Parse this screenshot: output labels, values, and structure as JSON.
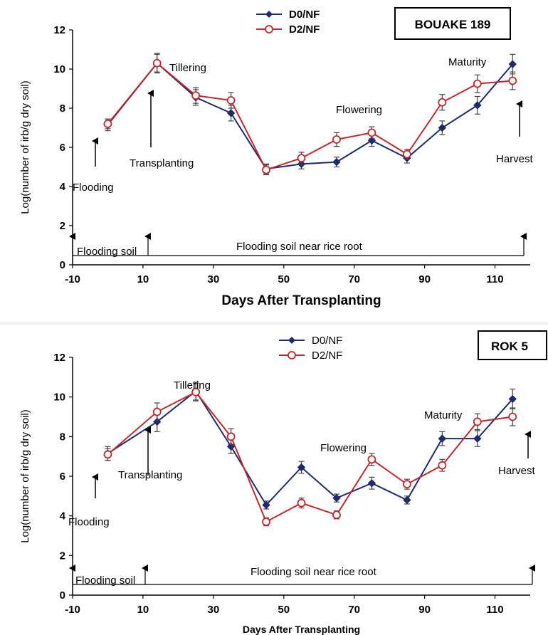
{
  "chart_data": [
    {
      "type": "line",
      "box_label": "BOUAKE 189",
      "xlabel": "Days After Transplanting",
      "ylabel": "Log(number of irb/g dry soil)",
      "xlim": [
        -10,
        120
      ],
      "ylim": [
        0,
        12
      ],
      "xticks": [
        -10,
        10,
        30,
        50,
        70,
        90,
        110
      ],
      "yticks": [
        0,
        2,
        4,
        6,
        8,
        10,
        12
      ],
      "x": [
        0,
        14,
        25,
        35,
        45,
        55,
        65,
        75,
        85,
        95,
        105,
        115
      ],
      "series": [
        {
          "name": "D0/NF",
          "color": "#1f2a6b",
          "marker": "diamond",
          "values": [
            7.15,
            10.3,
            8.55,
            7.75,
            4.9,
            5.15,
            5.25,
            6.35,
            5.45,
            7.0,
            8.15,
            10.25
          ],
          "errors": [
            0.3,
            0.5,
            0.4,
            0.4,
            0.25,
            0.25,
            0.25,
            0.3,
            0.25,
            0.35,
            0.45,
            0.5
          ]
        },
        {
          "name": "D2/NF",
          "color": "#c0282d",
          "marker": "circle",
          "values": [
            7.2,
            10.3,
            8.65,
            8.4,
            4.85,
            5.45,
            6.4,
            6.75,
            5.65,
            8.3,
            9.25,
            9.4
          ],
          "errors": [
            0.25,
            0.45,
            0.4,
            0.4,
            0.25,
            0.3,
            0.35,
            0.3,
            0.25,
            0.4,
            0.45,
            0.45
          ]
        }
      ],
      "annotations": [
        {
          "text": "Flooding",
          "x": 0
        },
        {
          "text": "Transplanting",
          "x": 14
        },
        {
          "text": "Tillering",
          "x": 25
        },
        {
          "text": "Flowering",
          "x": 70
        },
        {
          "text": "Maturity",
          "x": 103
        },
        {
          "text": "Harvest",
          "x": 115
        }
      ],
      "bottom_labels": {
        "left": "Flooding soil",
        "right": "Flooding soil near rice root"
      }
    },
    {
      "type": "line",
      "box_label": "ROK 5",
      "xlabel": "Days After Transplanting",
      "ylabel": "Log(number of irb/g dry soil)",
      "xlim": [
        -10,
        120
      ],
      "ylim": [
        0,
        12
      ],
      "xticks": [
        -10,
        10,
        30,
        50,
        70,
        90,
        110
      ],
      "yticks": [
        0,
        2,
        4,
        6,
        8,
        10,
        12
      ],
      "x": [
        0,
        14,
        25,
        35,
        45,
        55,
        65,
        75,
        85,
        95,
        105,
        115
      ],
      "series": [
        {
          "name": "D0/NF",
          "color": "#1f2a6b",
          "marker": "diamond",
          "values": [
            7.15,
            8.75,
            10.3,
            7.5,
            4.55,
            6.45,
            4.9,
            5.65,
            4.8,
            7.9,
            7.9,
            9.9
          ],
          "errors": [
            0.35,
            0.5,
            0.45,
            0.35,
            0.2,
            0.3,
            0.2,
            0.3,
            0.2,
            0.35,
            0.4,
            0.5
          ]
        },
        {
          "name": "D2/NF",
          "color": "#c0282d",
          "marker": "circle",
          "values": [
            7.1,
            9.25,
            10.25,
            8.0,
            3.7,
            4.65,
            4.05,
            6.85,
            5.6,
            6.55,
            8.75,
            9.0
          ],
          "errors": [
            0.3,
            0.45,
            0.45,
            0.4,
            0.2,
            0.25,
            0.2,
            0.3,
            0.25,
            0.3,
            0.4,
            0.45
          ]
        }
      ],
      "annotations": [
        {
          "text": "Flooding",
          "x": 0
        },
        {
          "text": "Transplanting",
          "x": 14
        },
        {
          "text": "Tillering",
          "x": 27
        },
        {
          "text": "Flowering",
          "x": 69
        },
        {
          "text": "Maturity",
          "x": 93
        },
        {
          "text": "Harvest",
          "x": 115
        }
      ],
      "bottom_labels": {
        "left": "Flooding soil",
        "right": "Flooding soil near rice root"
      }
    }
  ]
}
